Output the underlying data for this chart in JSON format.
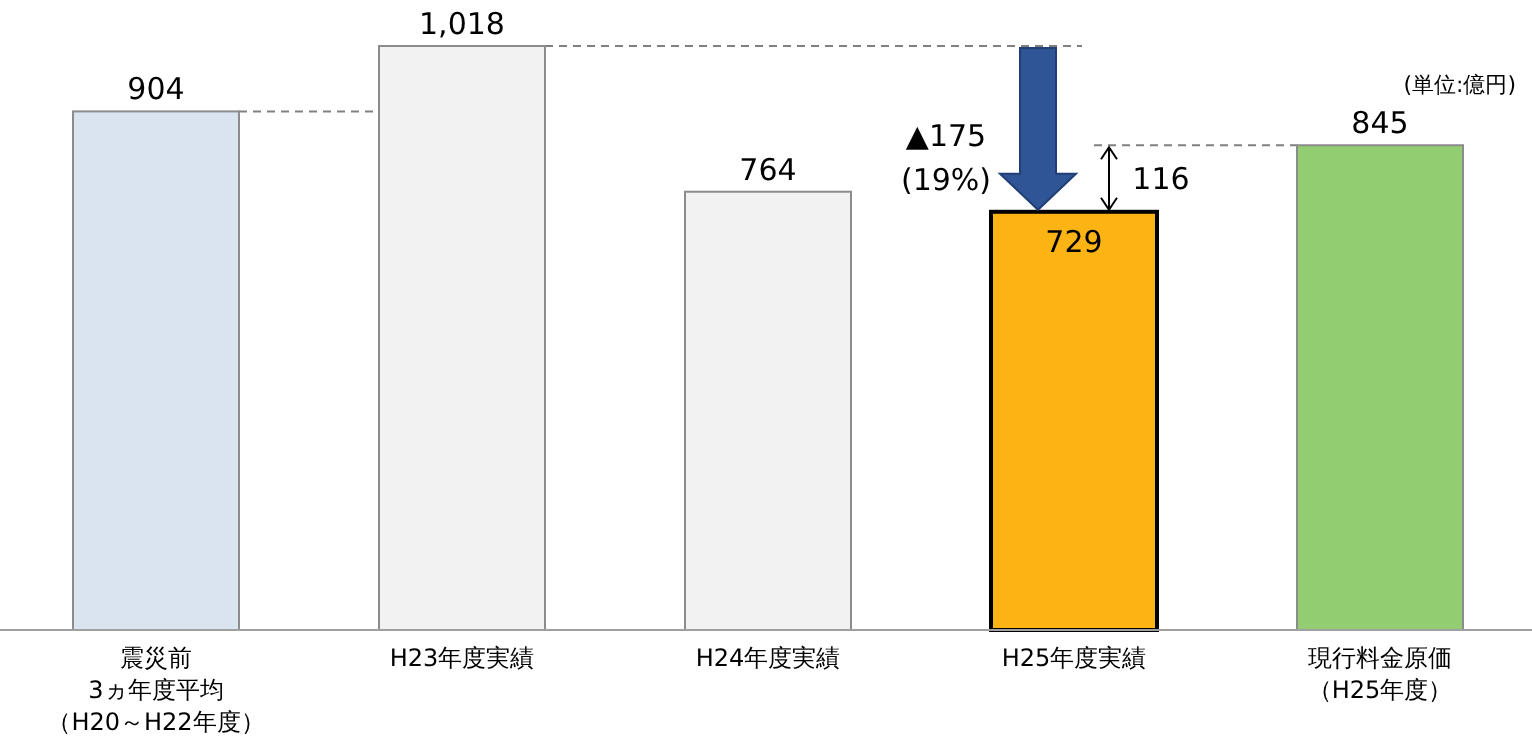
{
  "chart_data": {
    "type": "bar",
    "categories": [
      "震災前3ヵ年度平均（H20～H22年度）",
      "H23年度実績",
      "H24年度実績",
      "H25年度実績",
      "現行料金原価（H25年度）"
    ],
    "values": [
      904,
      1018,
      764,
      729,
      845
    ],
    "value_labels": [
      "904",
      "1,018",
      "764",
      "729",
      "845"
    ],
    "colors": [
      "#dae3f0",
      "#f2f2f2",
      "#f2f2f2",
      "#fbb414",
      "#92cd72"
    ],
    "ref_lines": [
      {
        "axis": "y",
        "value": 904,
        "color": "#808080",
        "line_style": "dashed"
      },
      {
        "axis": "y",
        "value": 1018,
        "color": "#808080",
        "line_style": "dashed"
      },
      {
        "axis": "y",
        "value": 845,
        "color": "#808080",
        "line_style": "dashed"
      }
    ],
    "annotations": [
      "▲175",
      "(19%)",
      "116",
      "(単位:億円)"
    ]
  }
}
